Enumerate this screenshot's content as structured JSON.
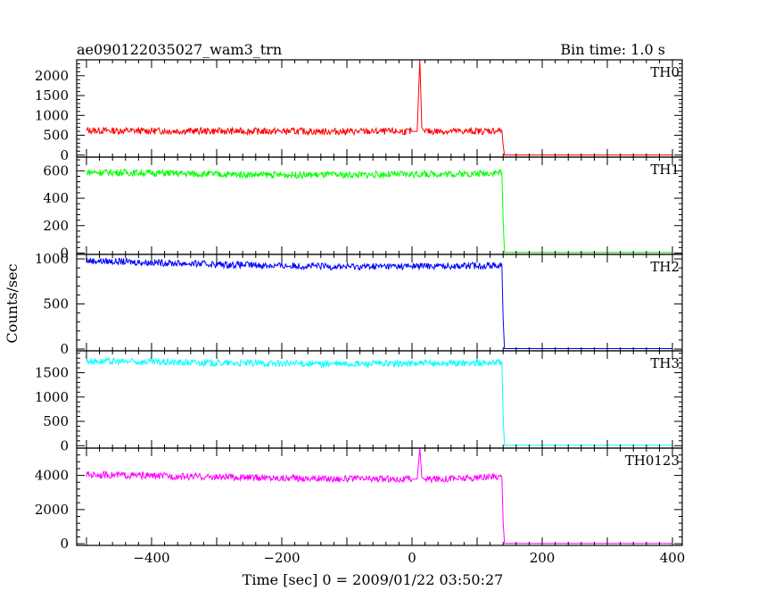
{
  "title": "ae090122035027_wam3_trn",
  "bin_time": "Bin time: 1.0 s",
  "xlabel": "Time [sec] 0 = 2009/01/22 03:50:27",
  "ylabel": "Counts/sec",
  "chart_data": {
    "type": "line",
    "xlim": [
      -515,
      415
    ],
    "x_ticks": [
      -400,
      -200,
      0,
      200,
      400
    ],
    "x_tick_labels": [
      "−400",
      "−200",
      "0",
      "200",
      "400"
    ],
    "grid": false,
    "panels": [
      {
        "name": "TH0",
        "color": "#ff0000",
        "ylim": [
          -50,
          2400
        ],
        "ticks": [
          0,
          500,
          1000,
          1500,
          2000
        ],
        "series": [
          {
            "x": -500,
            "y": 620
          },
          {
            "x": -400,
            "y": 610
          },
          {
            "x": -300,
            "y": 605
          },
          {
            "x": -200,
            "y": 600
          },
          {
            "x": -100,
            "y": 595
          },
          {
            "x": 0,
            "y": 595
          },
          {
            "x": 8,
            "y": 600
          },
          {
            "x": 12,
            "y": 2400
          },
          {
            "x": 15,
            "y": 700
          },
          {
            "x": 20,
            "y": 600
          },
          {
            "x": 100,
            "y": 600
          },
          {
            "x": 138,
            "y": 620
          },
          {
            "x": 140,
            "y": 250
          },
          {
            "x": 142,
            "y": 5
          },
          {
            "x": 400,
            "y": 5
          }
        ]
      },
      {
        "name": "TH1",
        "color": "#00ff00",
        "ylim": [
          -10,
          700
        ],
        "ticks": [
          0,
          200,
          400,
          600
        ],
        "series": [
          {
            "x": -500,
            "y": 590
          },
          {
            "x": -400,
            "y": 585
          },
          {
            "x": -300,
            "y": 575
          },
          {
            "x": -200,
            "y": 570
          },
          {
            "x": -100,
            "y": 570
          },
          {
            "x": 0,
            "y": 575
          },
          {
            "x": 100,
            "y": 580
          },
          {
            "x": 138,
            "y": 590
          },
          {
            "x": 140,
            "y": 240
          },
          {
            "x": 142,
            "y": 5
          },
          {
            "x": 400,
            "y": 5
          }
        ]
      },
      {
        "name": "TH2",
        "color": "#0000ff",
        "ylim": [
          -20,
          1050
        ],
        "ticks": [
          0,
          500,
          1000
        ],
        "series": [
          {
            "x": -500,
            "y": 980
          },
          {
            "x": -400,
            "y": 960
          },
          {
            "x": -300,
            "y": 940
          },
          {
            "x": -200,
            "y": 925
          },
          {
            "x": -100,
            "y": 915
          },
          {
            "x": 0,
            "y": 920
          },
          {
            "x": 100,
            "y": 925
          },
          {
            "x": 138,
            "y": 930
          },
          {
            "x": 140,
            "y": 340
          },
          {
            "x": 142,
            "y": 5
          },
          {
            "x": 400,
            "y": 5
          }
        ]
      },
      {
        "name": "TH3",
        "color": "#00ffff",
        "ylim": [
          -50,
          1950
        ],
        "ticks": [
          0,
          500,
          1000,
          1500
        ],
        "series": [
          {
            "x": -500,
            "y": 1740
          },
          {
            "x": -400,
            "y": 1720
          },
          {
            "x": -300,
            "y": 1700
          },
          {
            "x": -200,
            "y": 1690
          },
          {
            "x": -100,
            "y": 1680
          },
          {
            "x": 0,
            "y": 1690
          },
          {
            "x": 100,
            "y": 1700
          },
          {
            "x": 138,
            "y": 1720
          },
          {
            "x": 140,
            "y": 600
          },
          {
            "x": 142,
            "y": 10
          },
          {
            "x": 400,
            "y": 10
          }
        ]
      },
      {
        "name": "TH0123",
        "color": "#ff00ff",
        "ylim": [
          -100,
          5600
        ],
        "ticks": [
          0,
          2000,
          4000
        ],
        "series": [
          {
            "x": -500,
            "y": 4050
          },
          {
            "x": -400,
            "y": 3980
          },
          {
            "x": -300,
            "y": 3900
          },
          {
            "x": -200,
            "y": 3850
          },
          {
            "x": -100,
            "y": 3800
          },
          {
            "x": 0,
            "y": 3780
          },
          {
            "x": 8,
            "y": 3790
          },
          {
            "x": 12,
            "y": 5600
          },
          {
            "x": 15,
            "y": 3900
          },
          {
            "x": 20,
            "y": 3790
          },
          {
            "x": 100,
            "y": 3850
          },
          {
            "x": 138,
            "y": 3950
          },
          {
            "x": 140,
            "y": 1300
          },
          {
            "x": 142,
            "y": 20
          },
          {
            "x": 400,
            "y": 20
          }
        ]
      }
    ]
  }
}
